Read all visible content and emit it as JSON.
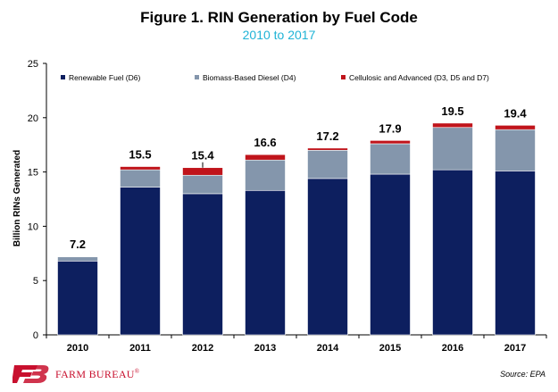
{
  "title": "Figure 1. RIN Generation by Fuel Code",
  "subtitle": "2010 to 2017",
  "source": "Source: EPA",
  "brand": {
    "name": "FARM BUREAU",
    "mark": "®"
  },
  "colors": {
    "subtitle": "#1fb3d6",
    "renewable": "#0d1f5f",
    "biomass": "#8496ac",
    "cellulosic": "#c0141b",
    "brand": "#c8102e"
  },
  "chart_data": {
    "type": "bar",
    "stacked": true,
    "categories": [
      "2010",
      "2011",
      "2012",
      "2013",
      "2014",
      "2015",
      "2016",
      "2017"
    ],
    "series": [
      {
        "name": "Renewable Fuel (D6)",
        "color": "#0d1f5f",
        "values": [
          6.8,
          13.6,
          13.0,
          13.3,
          14.4,
          14.8,
          15.2,
          15.1
        ]
      },
      {
        "name": "Biomass-Based Diesel (D4)",
        "color": "#8496ac",
        "values": [
          0.4,
          1.6,
          1.7,
          2.8,
          2.6,
          2.8,
          3.9,
          3.8
        ]
      },
      {
        "name": "Cellulosic and Advanced (D3, D5 and D7)",
        "color": "#c0141b",
        "values": [
          0.02,
          0.3,
          0.7,
          0.5,
          0.2,
          0.3,
          0.4,
          0.4
        ]
      }
    ],
    "totals": [
      "7.2",
      "15.5",
      "15.4",
      "16.6",
      "17.2",
      "17.9",
      "19.5",
      "19.4"
    ],
    "ylabel": "Billion RINs Generated",
    "xlabel": "",
    "ylim": [
      0,
      25
    ],
    "yticks": [
      "0",
      "5",
      "10",
      "15",
      "20",
      "25"
    ],
    "grid": false,
    "legend": "top"
  }
}
